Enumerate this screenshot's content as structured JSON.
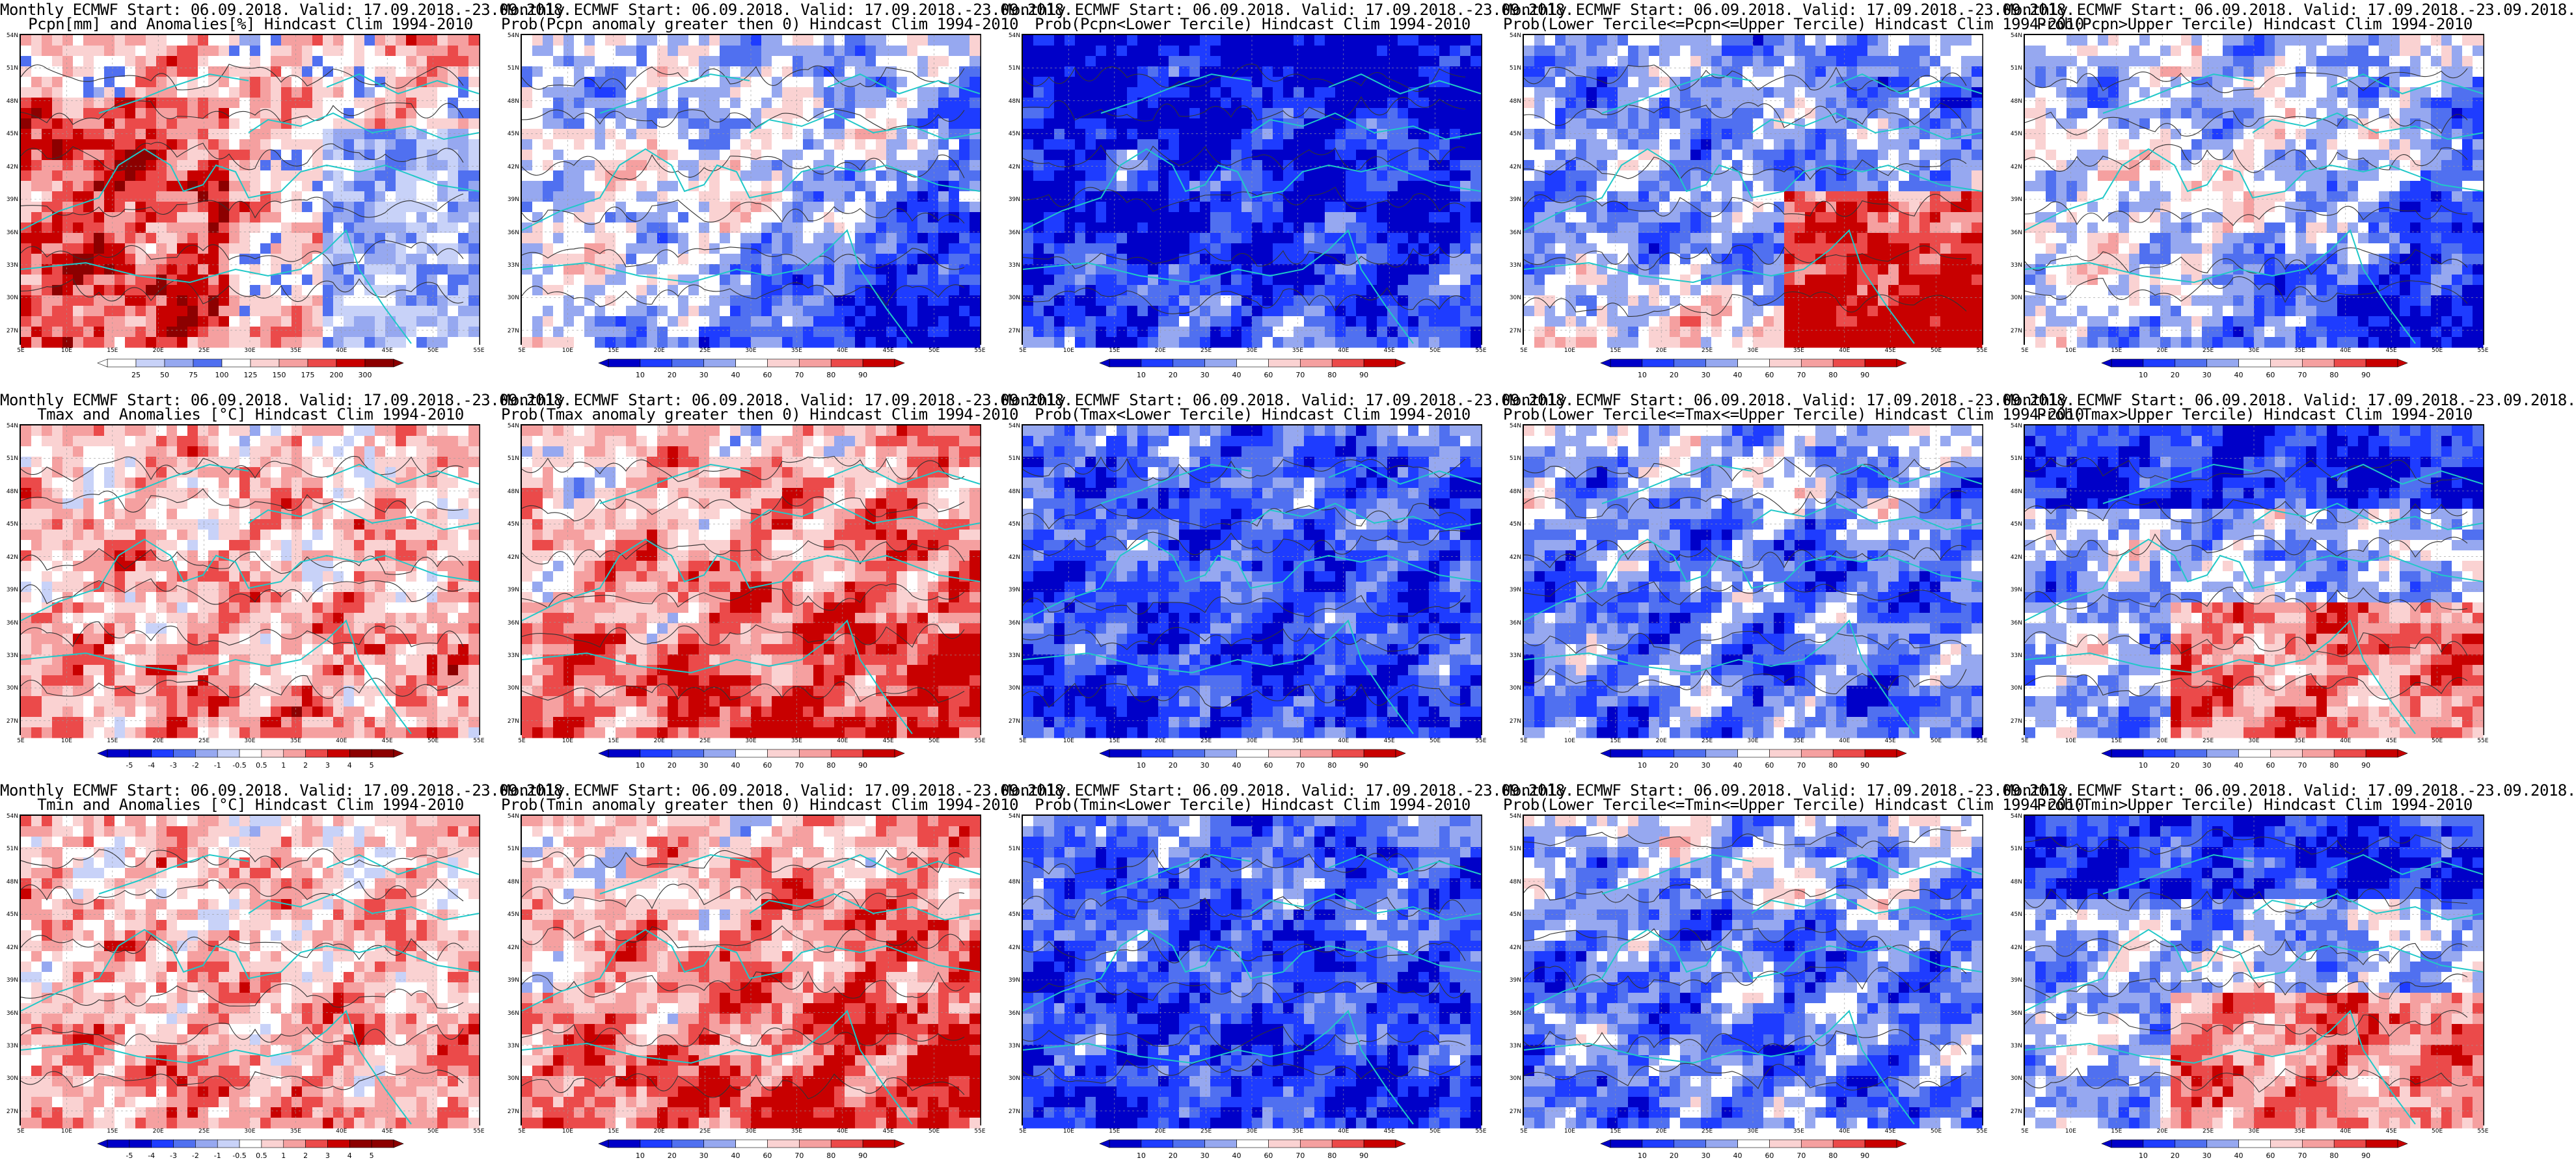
{
  "lat_labels": [
    "54N",
    "51N",
    "48N",
    "45N",
    "42N",
    "39N",
    "36N",
    "33N",
    "30N",
    "27N"
  ],
  "lon_labels": [
    "5E",
    "10E",
    "15E",
    "20E",
    "25E",
    "30E",
    "35E",
    "40E",
    "45E",
    "50E",
    "55E"
  ],
  "colors": {
    "dark_blue": "#0000c8",
    "blue": "#1e3cff",
    "med_blue": "#5070f0",
    "light_blue": "#96a8f0",
    "pale_blue": "#c8d2f8",
    "white": "#ffffff",
    "pale_red": "#fad2d2",
    "light_red": "#f5a0a0",
    "red": "#eb4a4a",
    "dark_red": "#c80000",
    "darkest_red": "#8c0000",
    "coast": "#20c8c8",
    "contour": "#333333"
  },
  "rows": [
    {
      "variable": "pcpn",
      "panels": [
        {
          "title1": "Monthly ECMWF Start: 06.09.2018. Valid: 17.09.2018.-23.09.2018.",
          "title2": "Pcpn[mm] and Anomalies[%] Hindcast Clim 1994-2010",
          "colorbar": [
            "25",
            "50",
            "75",
            "100",
            "125",
            "150",
            "175",
            "200",
            "300"
          ],
          "pattern": "anom_pcpn"
        },
        {
          "title1": "Monthly ECMWF Start: 06.09.2018. Valid: 17.09.2018.-23.09.2018.",
          "title2": "Prob(Pcpn anomaly greater then 0) Hindcast Clim 1994-2010",
          "colorbar": [
            "10",
            "20",
            "30",
            "40",
            "60",
            "70",
            "80",
            "90"
          ],
          "pattern": "prob_dry"
        },
        {
          "title1": "Monthly ECMWF Start: 06.09.2018. Valid: 17.09.2018.-23.09.2018.",
          "title2": "Prob(Pcpn<Lower Tercile) Hindcast Clim 1994-2010",
          "colorbar": [
            "10",
            "20",
            "30",
            "40",
            "60",
            "70",
            "80",
            "90"
          ],
          "pattern": "prob_bluenorth"
        },
        {
          "title1": "Monthly ECMWF Start: 06.09.2018. Valid: 17.09.2018.-23.09.2018.",
          "title2": "Prob(Lower Tercile<=Pcpn<=Upper Tercile) Hindcast Clim 1994-2010",
          "colorbar": [
            "10",
            "20",
            "30",
            "40",
            "60",
            "70",
            "80",
            "90"
          ],
          "pattern": "prob_redsouth"
        },
        {
          "title1": "Monthly ECMWF Start: 06.09.2018. Valid: 17.09.2018.-23.09.2018.",
          "title2": "Prob(Pcpn>Upper Tercile) Hindcast Clim 1994-2010",
          "colorbar": [
            "10",
            "20",
            "30",
            "40",
            "60",
            "70",
            "80",
            "90"
          ],
          "pattern": "prob_dry"
        }
      ]
    },
    {
      "variable": "tmax",
      "panels": [
        {
          "title1": "Monthly ECMWF Start: 06.09.2018. Valid: 17.09.2018.-23.09.2018.",
          "title2": "Tmax and Anomalies [°C] Hindcast Clim 1994-2010",
          "colorbar": [
            "-5",
            "-4",
            "-3",
            "-2",
            "-1",
            "-0.5",
            "0.5",
            "1",
            "2",
            "3",
            "4",
            "5"
          ],
          "pattern": "anom_temp_light"
        },
        {
          "title1": "Monthly ECMWF Start: 06.09.2018. Valid: 17.09.2018.-23.09.2018.",
          "title2": "Prob(Tmax anomaly greater then 0) Hindcast Clim 1994-2010",
          "colorbar": [
            "10",
            "20",
            "30",
            "40",
            "60",
            "70",
            "80",
            "90"
          ],
          "pattern": "prob_warm"
        },
        {
          "title1": "Monthly ECMWF Start: 06.09.2018. Valid: 17.09.2018.-23.09.2018.",
          "title2": "Prob(Tmax<Lower Tercile) Hindcast Clim 1994-2010",
          "colorbar": [
            "10",
            "20",
            "30",
            "40",
            "60",
            "70",
            "80",
            "90"
          ],
          "pattern": "prob_cold"
        },
        {
          "title1": "Monthly ECMWF Start: 06.09.2018. Valid: 17.09.2018.-23.09.2018.",
          "title2": "Prob(Lower Tercile<=Tmax<=Upper Tercile) Hindcast Clim 1994-2010",
          "colorbar": [
            "10",
            "20",
            "30",
            "40",
            "60",
            "70",
            "80",
            "90"
          ],
          "pattern": "prob_mid"
        },
        {
          "title1": "Monthly ECMWF Start: 06.09.2018. Valid: 17.09.2018.-23.09.2018.",
          "title2": "Prob(Tmax>Upper Tercile) Hindcast Clim 1994-2010",
          "colorbar": [
            "10",
            "20",
            "30",
            "40",
            "60",
            "70",
            "80",
            "90"
          ],
          "pattern": "prob_upper"
        }
      ]
    },
    {
      "variable": "tmin",
      "panels": [
        {
          "title1": "Monthly ECMWF Start: 06.09.2018. Valid: 17.09.2018.-23.09.2018.",
          "title2": "Tmin and Anomalies [°C] Hindcast Clim 1994-2010",
          "colorbar": [
            "-5",
            "-4",
            "-3",
            "-2",
            "-1",
            "-0.5",
            "0.5",
            "1",
            "2",
            "3",
            "4",
            "5"
          ],
          "pattern": "anom_temp_light"
        },
        {
          "title1": "Monthly ECMWF Start: 06.09.2018. Valid: 17.09.2018.-23.09.2018.",
          "title2": "Prob(Tmin anomaly greater then 0) Hindcast Clim 1994-2010",
          "colorbar": [
            "10",
            "20",
            "30",
            "40",
            "60",
            "70",
            "80",
            "90"
          ],
          "pattern": "prob_warm"
        },
        {
          "title1": "Monthly ECMWF Start: 06.09.2018. Valid: 17.09.2018.-23.09.2018.",
          "title2": "Prob(Tmin<Lower Tercile) Hindcast Clim 1994-2010",
          "colorbar": [
            "10",
            "20",
            "30",
            "40",
            "60",
            "70",
            "80",
            "90"
          ],
          "pattern": "prob_cold"
        },
        {
          "title1": "Monthly ECMWF Start: 06.09.2018. Valid: 17.09.2018.-23.09.2018.",
          "title2": "Prob(Lower Tercile<=Tmin<=Upper Tercile) Hindcast Clim 1994-2010",
          "colorbar": [
            "10",
            "20",
            "30",
            "40",
            "60",
            "70",
            "80",
            "90"
          ],
          "pattern": "prob_mid"
        },
        {
          "title1": "Monthly ECMWF Start: 06.09.2018. Valid: 17.09.2018.-23.09.2018.",
          "title2": "Prob(Tmin>Upper Tercile) Hindcast Clim 1994-2010",
          "colorbar": [
            "10",
            "20",
            "30",
            "40",
            "60",
            "70",
            "80",
            "90"
          ],
          "pattern": "prob_upper"
        }
      ]
    }
  ]
}
